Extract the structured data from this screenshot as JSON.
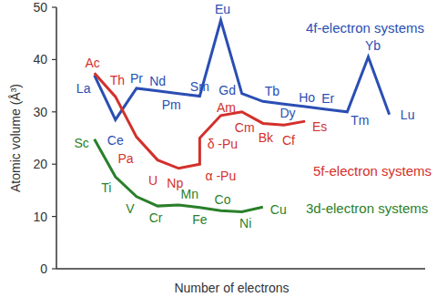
{
  "chart_data": {
    "type": "line",
    "x_label": "Number of electrons",
    "y_label": "Atomic volume (Å³)",
    "xlim": [
      -0.8,
      16.7
    ],
    "ylim": [
      0,
      50
    ],
    "yticks": [
      0,
      10,
      20,
      30,
      40,
      50
    ],
    "tick_labels": "y",
    "series": [
      {
        "name": "4f-electron systems",
        "color": "#2a4eb3",
        "x": [
          1,
          2,
          3,
          4,
          5,
          6,
          7,
          8,
          9,
          10,
          11,
          12,
          13,
          14,
          15
        ],
        "values": [
          37,
          28.5,
          34.5,
          34,
          33.5,
          33,
          47.5,
          33.5,
          32,
          31.5,
          31,
          30.5,
          30,
          40.5,
          29.5
        ],
        "labels": [
          "La",
          "Ce",
          "Pr",
          "Nd",
          "Pm",
          "Sm",
          "Eu",
          "Gd",
          "Tb",
          "Dy",
          "Ho",
          "Er",
          "Tm",
          "Yb",
          "Lu"
        ]
      },
      {
        "name": "5f-electron systems",
        "color": "#d3302b",
        "x": [
          1,
          2,
          3,
          4,
          5,
          6,
          6,
          7,
          8,
          9,
          10,
          11
        ],
        "values": [
          37.4,
          32.9,
          25.2,
          20.8,
          19.2,
          20,
          25,
          29.3,
          30,
          27.8,
          27.5,
          28.2
        ],
        "labels": [
          "Ac",
          "Th",
          "Pa",
          "U",
          "Np",
          "α -Pu",
          "δ -Pu",
          "Am",
          "Cm",
          "Bk",
          "Cf",
          "Es"
        ]
      },
      {
        "name": "3d-electron systems",
        "color": "#2a7f2a",
        "x": [
          1,
          2,
          3,
          4,
          5,
          6,
          7,
          8,
          9
        ],
        "values": [
          24.8,
          17.6,
          13.8,
          12,
          12.2,
          11.7,
          11.1,
          10.9,
          11.8
        ],
        "labels": [
          "Sc",
          "Ti",
          "V",
          "Cr",
          "Mn",
          "Fe",
          "Co",
          "Ni",
          "Cu"
        ]
      }
    ]
  }
}
